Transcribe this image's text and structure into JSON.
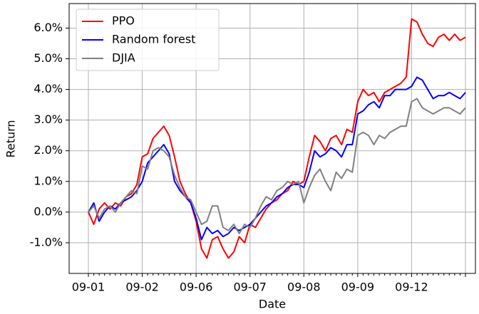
{
  "chart_data": {
    "type": "line",
    "x_label": "Date",
    "y_label": "Return",
    "categories": [
      "09-01",
      null,
      null,
      null,
      null,
      null,
      null,
      null,
      null,
      null,
      "09-02",
      null,
      null,
      null,
      null,
      null,
      null,
      null,
      null,
      null,
      "09-06",
      null,
      null,
      null,
      null,
      null,
      null,
      null,
      null,
      null,
      "09-07",
      null,
      null,
      null,
      null,
      null,
      null,
      null,
      null,
      null,
      "09-08",
      null,
      null,
      null,
      null,
      null,
      null,
      null,
      null,
      null,
      "09-09",
      null,
      null,
      null,
      null,
      null,
      null,
      null,
      null,
      null,
      "09-12",
      null,
      null,
      null,
      null,
      null,
      null,
      null,
      null,
      null,
      null
    ],
    "series": [
      {
        "name": "PPO",
        "color": "#ff0000",
        "values": [
          0.0,
          -0.4,
          0.1,
          0.3,
          0.1,
          0.3,
          0.2,
          0.5,
          0.6,
          0.9,
          1.8,
          1.9,
          2.4,
          2.6,
          2.8,
          2.5,
          1.8,
          1.0,
          0.6,
          0.3,
          -0.3,
          -1.2,
          -1.5,
          -0.9,
          -0.8,
          -1.2,
          -1.5,
          -1.3,
          -0.8,
          -1.0,
          -0.4,
          -0.5,
          -0.2,
          0.1,
          0.3,
          0.4,
          0.6,
          0.7,
          1.0,
          0.9,
          1.0,
          1.8,
          2.5,
          2.3,
          2.0,
          2.4,
          2.5,
          2.2,
          2.7,
          2.6,
          3.6,
          4.0,
          3.8,
          3.9,
          3.6,
          3.9,
          4.0,
          4.1,
          4.2,
          4.4,
          6.3,
          6.2,
          5.8,
          5.5,
          5.4,
          5.7,
          5.8,
          5.6,
          5.8,
          5.6,
          5.7
        ]
      },
      {
        "name": "Random forest",
        "color": "#0000ff",
        "values": [
          0.0,
          0.3,
          -0.3,
          0.0,
          0.2,
          0.1,
          0.3,
          0.4,
          0.5,
          0.7,
          1.0,
          1.6,
          1.8,
          2.0,
          2.2,
          1.9,
          1.0,
          0.7,
          0.5,
          0.3,
          -0.2,
          -0.9,
          -0.5,
          -0.7,
          -0.6,
          -0.8,
          -0.7,
          -0.5,
          -0.6,
          -0.5,
          -0.4,
          -0.2,
          0.0,
          0.2,
          0.3,
          0.5,
          0.6,
          0.8,
          0.9,
          0.9,
          0.8,
          1.3,
          2.0,
          1.8,
          1.9,
          2.1,
          2.0,
          1.8,
          2.2,
          2.2,
          3.2,
          3.3,
          3.5,
          3.6,
          3.4,
          3.8,
          3.8,
          4.0,
          4.0,
          4.0,
          4.1,
          4.4,
          4.3,
          4.0,
          3.7,
          3.8,
          3.8,
          3.9,
          3.8,
          3.7,
          3.9
        ]
      },
      {
        "name": "DJIA",
        "color": "#808080",
        "values": [
          0.0,
          0.2,
          -0.2,
          0.1,
          0.2,
          0.0,
          0.3,
          0.5,
          0.7,
          0.6,
          1.5,
          1.4,
          2.0,
          2.1,
          2.0,
          1.8,
          1.2,
          0.8,
          0.5,
          0.4,
          0.0,
          -0.4,
          -0.3,
          0.2,
          0.2,
          -0.5,
          -0.6,
          -0.4,
          -0.7,
          -0.4,
          -0.5,
          -0.2,
          0.2,
          0.5,
          0.4,
          0.7,
          0.8,
          1.0,
          0.9,
          1.0,
          0.3,
          0.8,
          1.2,
          1.4,
          1.0,
          0.7,
          1.3,
          1.1,
          1.4,
          1.3,
          2.5,
          2.6,
          2.5,
          2.2,
          2.5,
          2.4,
          2.6,
          2.7,
          2.8,
          2.8,
          3.6,
          3.7,
          3.4,
          3.3,
          3.2,
          3.3,
          3.4,
          3.4,
          3.3,
          3.2,
          3.4
        ]
      }
    ],
    "ylim": [
      -2.0,
      6.8
    ],
    "yticks": [
      {
        "value": -1,
        "label": "-1.0%"
      },
      {
        "value": 0,
        "label": "0.0%"
      },
      {
        "value": 1,
        "label": "1.0%"
      },
      {
        "value": 2,
        "label": "2.0%"
      },
      {
        "value": 3,
        "label": "3.0%"
      },
      {
        "value": 4,
        "label": "4.0%"
      },
      {
        "value": 5,
        "label": "5.0%"
      },
      {
        "value": 6,
        "label": "6.0%"
      }
    ],
    "grid": true,
    "legend": "upper left"
  }
}
